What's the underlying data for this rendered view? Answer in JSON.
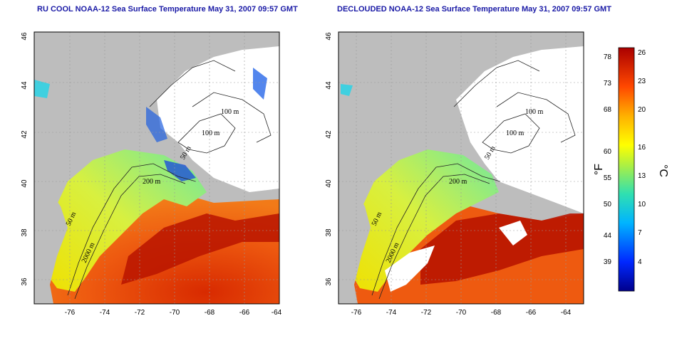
{
  "left_panel": {
    "title": "RU COOL NOAA-12 Sea Surface Temperature May 31, 2007 09:57 GMT",
    "contours": [
      "100 m",
      "100 m",
      "50 m",
      "200 m",
      "50 m",
      "2000 m"
    ]
  },
  "right_panel": {
    "title": "DECLOUDED NOAA-12 Sea Surface Temperature May 31, 2007 09:57 GMT",
    "contours": [
      "100 m",
      "100 m",
      "50 m",
      "200 m",
      "50 m",
      "2000 m"
    ]
  },
  "axes": {
    "lat_ticks": [
      "46",
      "44",
      "42",
      "40",
      "38",
      "36"
    ],
    "lon_ticks": [
      "-76",
      "-74",
      "-72",
      "-70",
      "-68",
      "-66",
      "-64"
    ]
  },
  "colorbar": {
    "fahrenheit_ticks": [
      "78",
      "73",
      "68",
      "60",
      "55",
      "50",
      "44",
      "39"
    ],
    "celsius_ticks": [
      "26",
      "23",
      "20",
      "16",
      "13",
      "10",
      "7",
      "4"
    ],
    "fahrenheit_unit": "°F",
    "celsius_unit": "°C"
  },
  "colors": {
    "land": "#bdbdbd",
    "title": "#1a1aa6",
    "warm": "#c81e00",
    "cool": "#2050e0"
  }
}
